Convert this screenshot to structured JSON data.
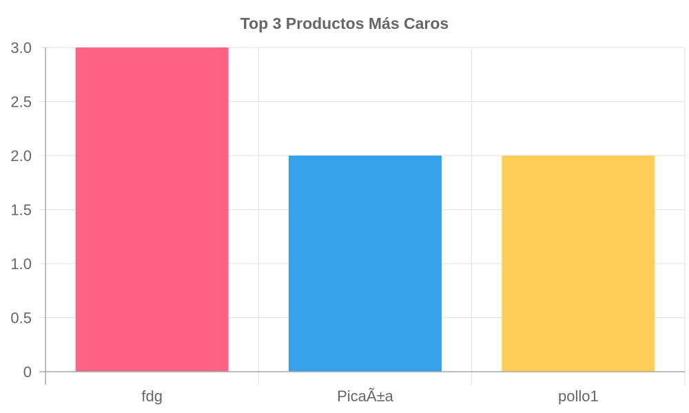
{
  "chart_data": {
    "type": "bar",
    "title": "Top 3 Productos Más Caros",
    "categories": [
      "fdg",
      "PicaÃ±a",
      "pollo1"
    ],
    "values": [
      3,
      2,
      2
    ],
    "bar_colors": [
      "#ff6384",
      "#36a2eb",
      "#ffce56"
    ],
    "ylim": [
      0,
      3
    ],
    "y_ticks": [
      "0",
      "0.5",
      "1.0",
      "1.5",
      "2.0",
      "2.5",
      "3.0"
    ],
    "y_tick_values": [
      0,
      0.5,
      1,
      1.5,
      2,
      2.5,
      3
    ],
    "grid": true,
    "legend": "none"
  }
}
